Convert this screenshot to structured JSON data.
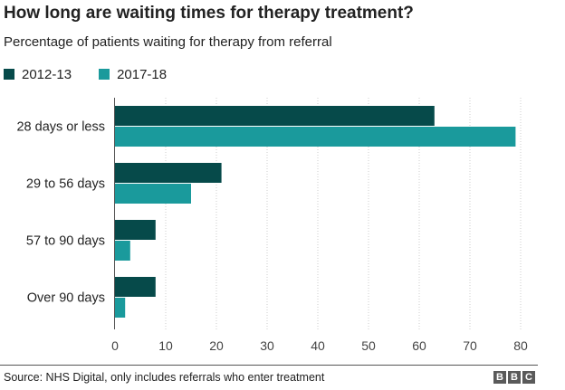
{
  "chart_data": {
    "type": "bar",
    "orientation": "horizontal",
    "title": "How long are waiting times for therapy treatment?",
    "subtitle": "Percentage of patients waiting for therapy from referral",
    "categories": [
      "28 days or less",
      "29 to 56 days",
      "57 to 90 days",
      "Over 90 days"
    ],
    "series": [
      {
        "name": "2012-13",
        "values": [
          63,
          21,
          8,
          8
        ],
        "color": "#064a4a"
      },
      {
        "name": "2017-18",
        "values": [
          79,
          15,
          3,
          2
        ],
        "color": "#1a9a9c"
      }
    ],
    "xlim": [
      0,
      80
    ],
    "xticks": [
      0,
      10,
      20,
      30,
      40,
      50,
      60,
      70,
      80
    ],
    "xlabel": "",
    "ylabel": "",
    "grid": "vertical-dotted",
    "legend_position": "top-left"
  },
  "source": "Source: NHS Digital, only includes referrals who enter treatment",
  "logo": [
    "B",
    "B",
    "C"
  ]
}
